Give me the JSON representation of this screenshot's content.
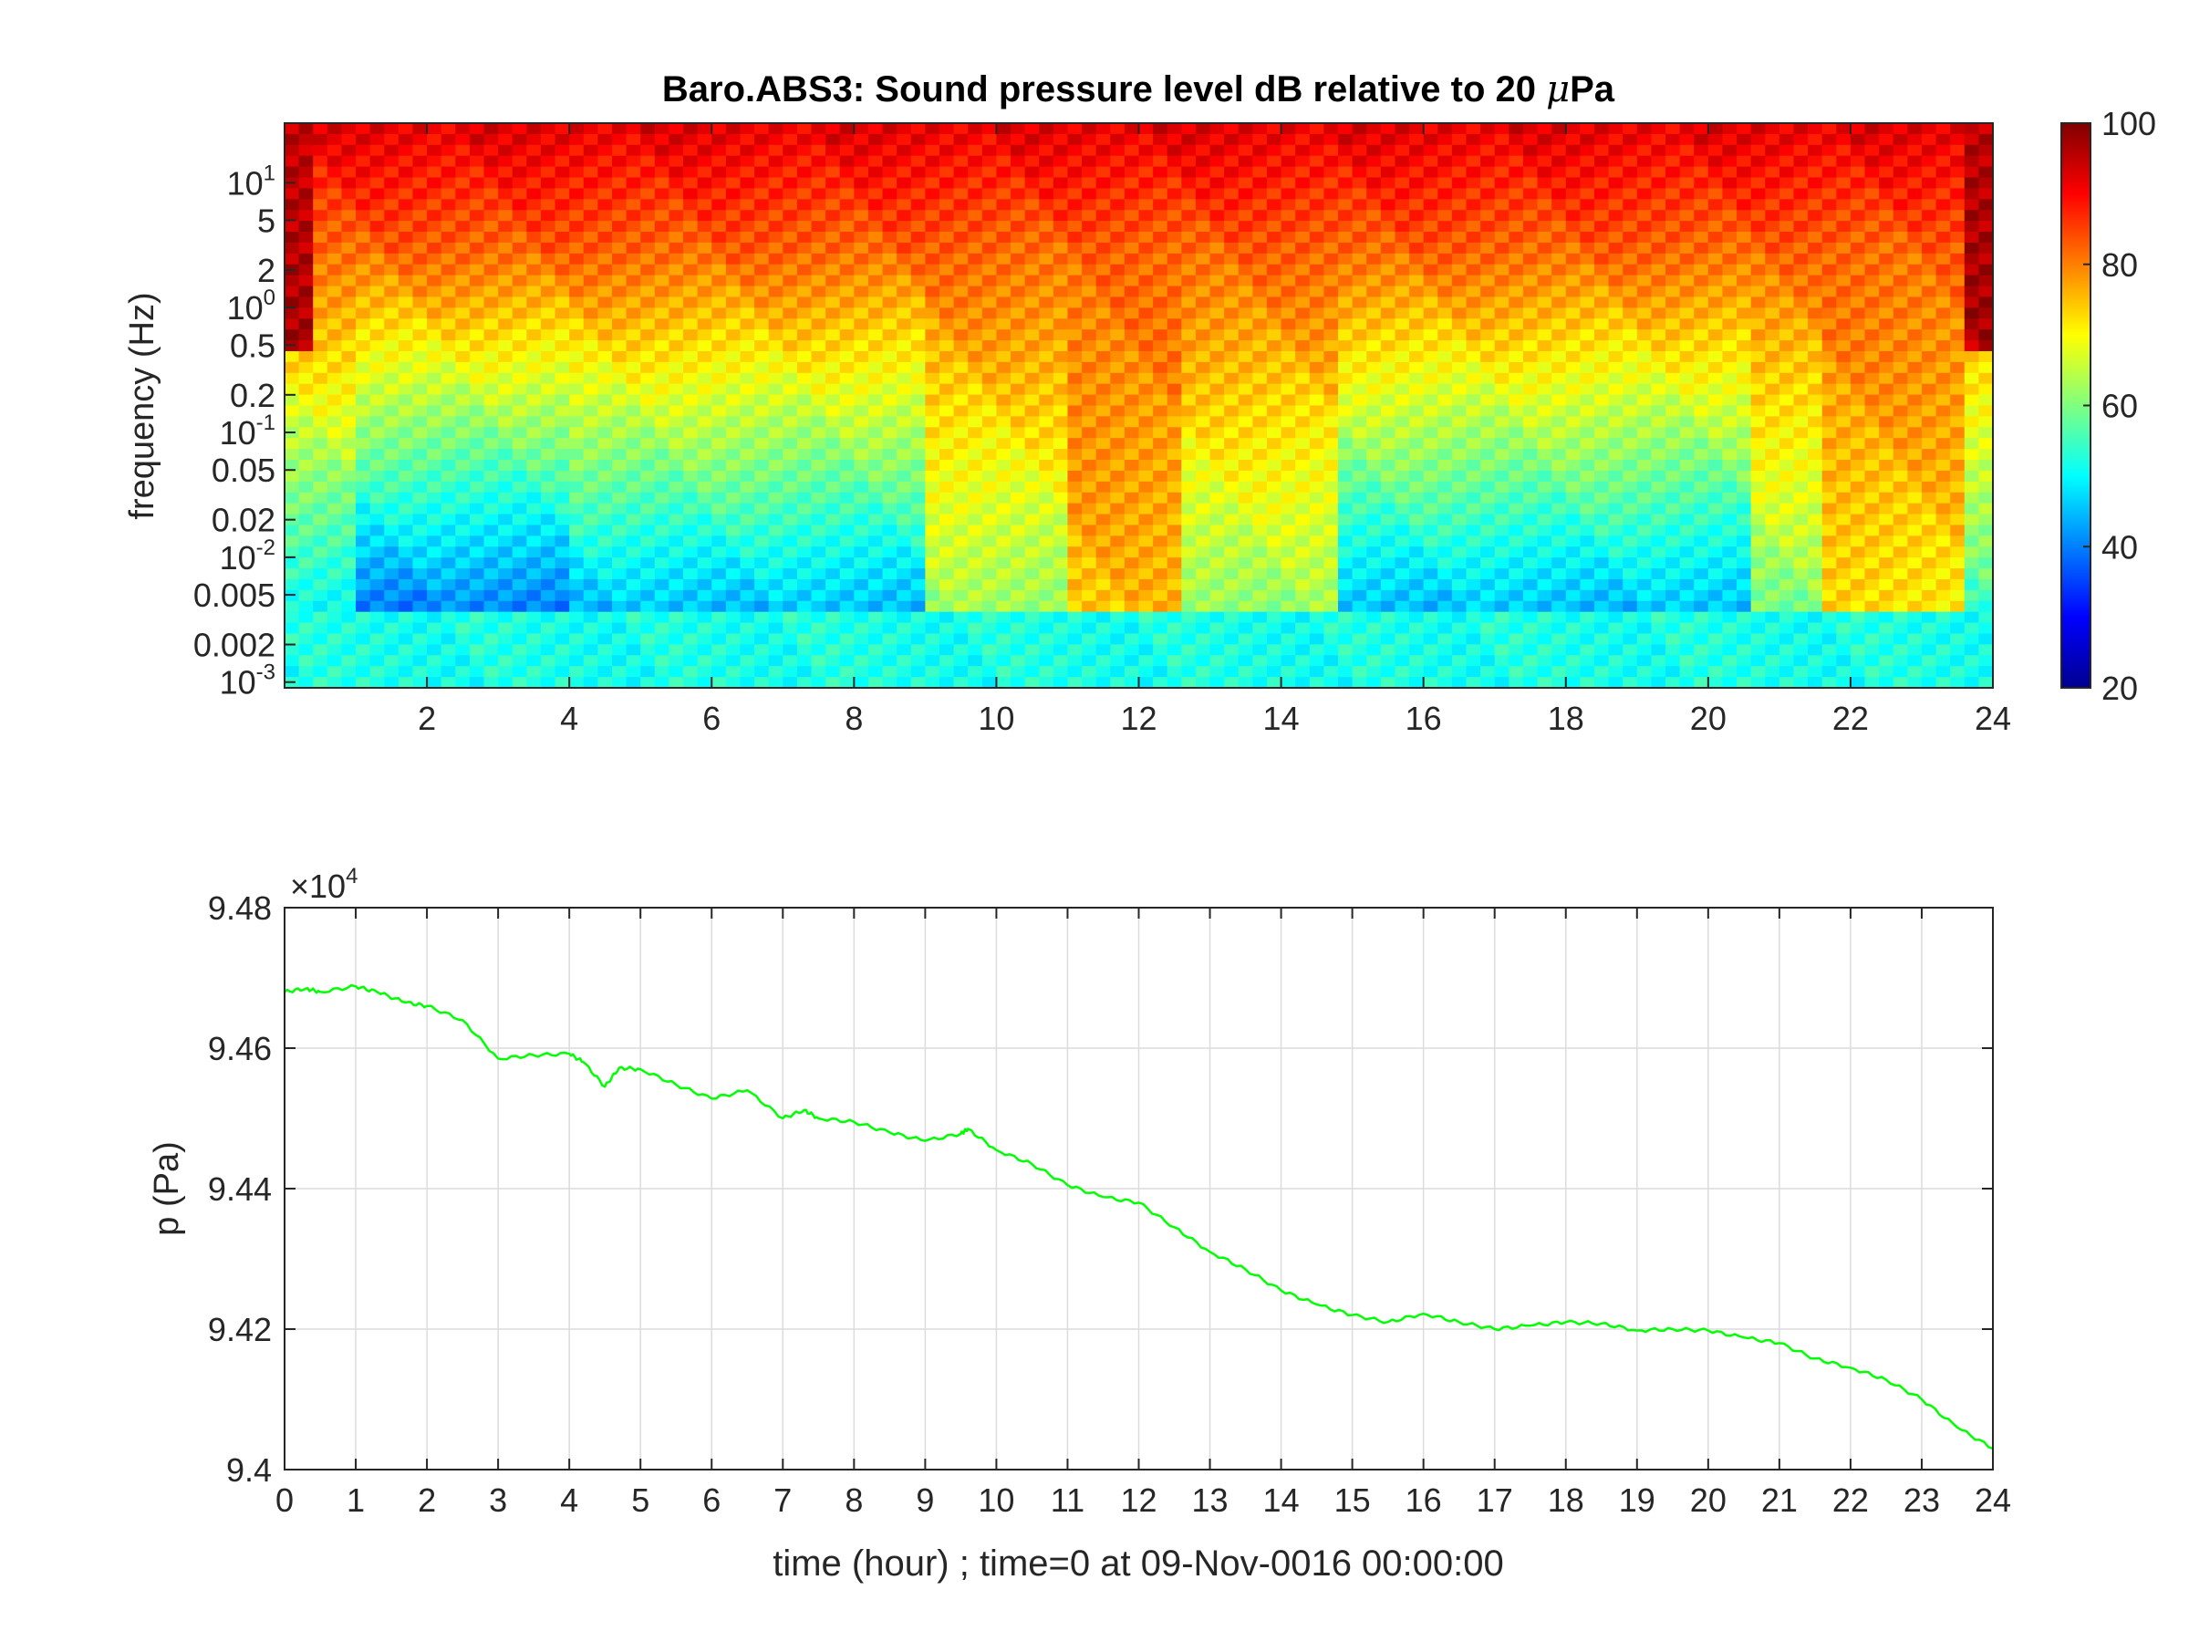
{
  "chart_data": [
    {
      "type": "heatmap",
      "title": "Baro.ABS3: Sound pressure level dB relative to 20 μPa",
      "title_main": "Baro.ABS3: Sound pressure level dB relative to 20 ",
      "title_mu": "μ",
      "title_tail": "Pa",
      "xlabel": "",
      "ylabel": "frequency (Hz)",
      "yscale": "log",
      "xlim": [
        0,
        24
      ],
      "ylim": [
        0.0009,
        30
      ],
      "x_ticks": [
        2,
        4,
        6,
        8,
        10,
        12,
        14,
        16,
        18,
        20,
        22,
        24
      ],
      "y_ticks": [
        {
          "value": 10,
          "label": "10",
          "exp": "1"
        },
        {
          "value": 5,
          "label": "5",
          "exp": ""
        },
        {
          "value": 2,
          "label": "2",
          "exp": ""
        },
        {
          "value": 1,
          "label": "10",
          "exp": "0"
        },
        {
          "value": 0.5,
          "label": "0.5",
          "exp": ""
        },
        {
          "value": 0.2,
          "label": "0.2",
          "exp": ""
        },
        {
          "value": 0.1,
          "label": "10",
          "exp": "-1"
        },
        {
          "value": 0.05,
          "label": "0.05",
          "exp": ""
        },
        {
          "value": 0.02,
          "label": "0.02",
          "exp": ""
        },
        {
          "value": 0.01,
          "label": "10",
          "exp": "-2"
        },
        {
          "value": 0.005,
          "label": "0.005",
          "exp": ""
        },
        {
          "value": 0.002,
          "label": "0.002",
          "exp": ""
        },
        {
          "value": 0.001,
          "label": "10",
          "exp": "-3"
        }
      ],
      "colorbar": {
        "colormap": "jet",
        "clim": [
          20,
          100
        ],
        "ticks": [
          20,
          40,
          60,
          80,
          100
        ],
        "tick_labels": [
          "20",
          "40",
          "60",
          "80",
          "100"
        ]
      },
      "time_bands": [
        {
          "x0": 0,
          "x1": 1,
          "level_db": 50
        },
        {
          "x0": 1,
          "x1": 4,
          "level_db": 40
        },
        {
          "x0": 4,
          "x1": 6,
          "level_db": 45
        },
        {
          "x0": 6,
          "x1": 9,
          "level_db": 45
        },
        {
          "x0": 9,
          "x1": 11,
          "level_db": 62
        },
        {
          "x0": 11,
          "x1": 12.5,
          "level_db": 75
        },
        {
          "x0": 12.5,
          "x1": 14.8,
          "level_db": 62
        },
        {
          "x0": 14.8,
          "x1": 20.5,
          "level_db": 45
        },
        {
          "x0": 20.5,
          "x1": 21.5,
          "level_db": 60
        },
        {
          "x0": 21.5,
          "x1": 23.5,
          "level_db": 72
        },
        {
          "x0": 23.5,
          "x1": 24,
          "level_db": 55
        }
      ]
    },
    {
      "type": "line",
      "xlabel": "time (hour) ; time=0 at 09-Nov-0016 00:00:00",
      "ylabel": "p (Pa)",
      "xlim": [
        0,
        24
      ],
      "ylim": [
        94000,
        94800
      ],
      "grid": true,
      "y_exponent_label": "×10",
      "y_exponent": "4",
      "x_ticks": [
        0,
        1,
        2,
        3,
        4,
        5,
        6,
        7,
        8,
        9,
        10,
        11,
        12,
        13,
        14,
        15,
        16,
        17,
        18,
        19,
        20,
        21,
        22,
        23,
        24
      ],
      "x_tick_labels": [
        "0",
        "1",
        "2",
        "3",
        "4",
        "5",
        "6",
        "7",
        "8",
        "9",
        "10",
        "11",
        "12",
        "13",
        "14",
        "15",
        "16",
        "17",
        "18",
        "19",
        "20",
        "21",
        "22",
        "23",
        "24"
      ],
      "y_ticks": [
        94000,
        94200,
        94400,
        94600,
        94800
      ],
      "y_tick_labels": [
        "9.4",
        "9.42",
        "9.44",
        "9.46",
        "9.48"
      ],
      "series": [
        {
          "color": "#00ff00",
          "x": [
            0,
            0.3,
            0.5,
            1.0,
            1.3,
            1.7,
            2.0,
            2.5,
            3.0,
            3.5,
            4.0,
            4.2,
            4.5,
            4.7,
            5.0,
            5.5,
            6.0,
            6.5,
            7.0,
            7.3,
            7.5,
            8.0,
            8.5,
            9.0,
            9.5,
            9.6,
            10.0,
            10.5,
            11.0,
            11.5,
            12.0,
            12.5,
            13.0,
            13.5,
            14.0,
            14.5,
            15.0,
            15.5,
            16.0,
            16.5,
            17.0,
            17.5,
            18.0,
            18.5,
            19.0,
            19.5,
            20.0,
            20.5,
            21.0,
            21.5,
            22.0,
            22.5,
            23.0,
            23.5,
            24.0
          ],
          "y": [
            94680,
            94685,
            94680,
            94688,
            94680,
            94665,
            94660,
            94640,
            94585,
            94590,
            94592,
            94580,
            94545,
            94572,
            94570,
            94548,
            94528,
            94540,
            94500,
            94512,
            94500,
            94495,
            94480,
            94468,
            94478,
            94485,
            94455,
            94435,
            94405,
            94388,
            94380,
            94345,
            94310,
            94285,
            94255,
            94235,
            94220,
            94210,
            94222,
            94210,
            94200,
            94205,
            94210,
            94208,
            94198,
            94200,
            94198,
            94188,
            94180,
            94158,
            94145,
            94128,
            94100,
            94060,
            94030
          ]
        }
      ]
    }
  ]
}
